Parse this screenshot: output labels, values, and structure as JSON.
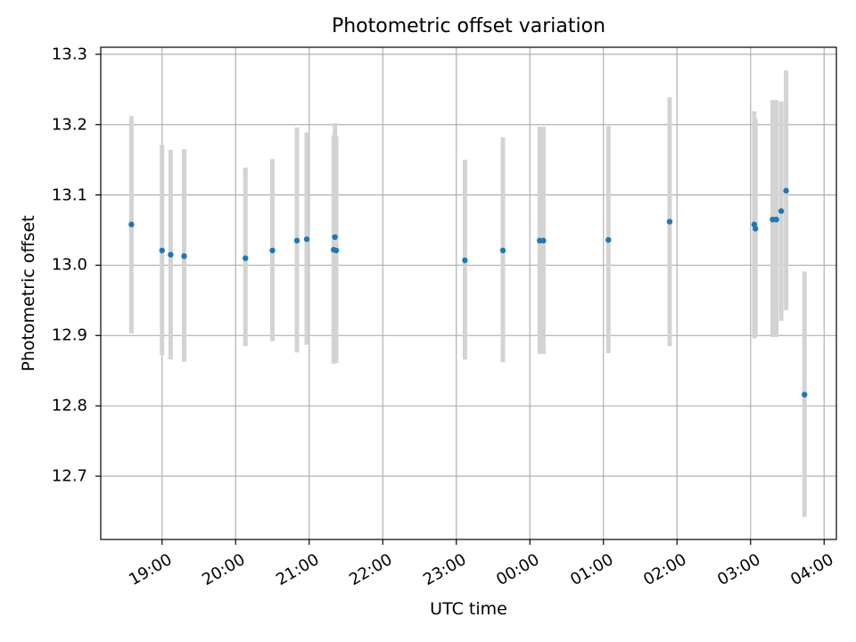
{
  "chart_data": {
    "type": "scatter",
    "title": "Photometric offset variation",
    "xlabel": "UTC time",
    "ylabel": "Photometric offset",
    "grid": true,
    "error_bars": true,
    "colors": {
      "points": "#1f77b4",
      "error_bars": "#d3d3d3",
      "grid": "#b0b0b0"
    },
    "xlim": [
      "18:10",
      "04:10"
    ],
    "ylim": [
      12.61,
      13.31
    ],
    "x_ticks": [
      "19:00",
      "20:00",
      "21:00",
      "22:00",
      "23:00",
      "00:00",
      "01:00",
      "02:00",
      "03:00",
      "04:00"
    ],
    "y_ticks": [
      "12.7",
      "12.8",
      "12.9",
      "13.0",
      "13.1",
      "13.2",
      "13.3"
    ],
    "points": [
      {
        "x": "18:35",
        "y": 13.058,
        "ylow": 12.903,
        "yhigh": 13.212
      },
      {
        "x": "19:00",
        "y": 13.021,
        "ylow": 12.872,
        "yhigh": 13.171
      },
      {
        "x": "19:07",
        "y": 13.015,
        "ylow": 12.866,
        "yhigh": 13.164
      },
      {
        "x": "19:18",
        "y": 13.013,
        "ylow": 12.863,
        "yhigh": 13.165
      },
      {
        "x": "20:08",
        "y": 13.01,
        "ylow": 12.885,
        "yhigh": 13.139
      },
      {
        "x": "20:30",
        "y": 13.021,
        "ylow": 12.892,
        "yhigh": 13.151
      },
      {
        "x": "20:50",
        "y": 13.035,
        "ylow": 12.876,
        "yhigh": 13.196
      },
      {
        "x": "20:58",
        "y": 13.037,
        "ylow": 12.887,
        "yhigh": 13.189
      },
      {
        "x": "21:20",
        "y": 13.022,
        "ylow": 12.86,
        "yhigh": 13.185
      },
      {
        "x": "21:21",
        "y": 13.04,
        "ylow": 12.862,
        "yhigh": 13.202
      },
      {
        "x": "21:22",
        "y": 13.021,
        "ylow": 12.861,
        "yhigh": 13.183
      },
      {
        "x": "23:07",
        "y": 13.007,
        "ylow": 12.866,
        "yhigh": 13.15
      },
      {
        "x": "23:38",
        "y": 13.021,
        "ylow": 12.862,
        "yhigh": 13.182
      },
      {
        "x": "00:08",
        "y": 13.035,
        "ylow": 12.874,
        "yhigh": 13.197
      },
      {
        "x": "00:11",
        "y": 13.035,
        "ylow": 12.874,
        "yhigh": 13.197
      },
      {
        "x": "01:04",
        "y": 13.036,
        "ylow": 12.875,
        "yhigh": 13.198
      },
      {
        "x": "01:54",
        "y": 13.062,
        "ylow": 12.885,
        "yhigh": 13.239
      },
      {
        "x": "03:03",
        "y": 13.058,
        "ylow": 12.896,
        "yhigh": 13.219
      },
      {
        "x": "03:04",
        "y": 13.052,
        "ylow": 12.898,
        "yhigh": 13.208
      },
      {
        "x": "03:18",
        "y": 13.065,
        "ylow": 12.898,
        "yhigh": 13.235
      },
      {
        "x": "03:21",
        "y": 13.065,
        "ylow": 12.898,
        "yhigh": 13.235
      },
      {
        "x": "03:25",
        "y": 13.077,
        "ylow": 12.921,
        "yhigh": 13.233
      },
      {
        "x": "03:29",
        "y": 13.106,
        "ylow": 12.936,
        "yhigh": 13.277
      },
      {
        "x": "03:44",
        "y": 12.816,
        "ylow": 12.642,
        "yhigh": 12.991
      }
    ]
  }
}
